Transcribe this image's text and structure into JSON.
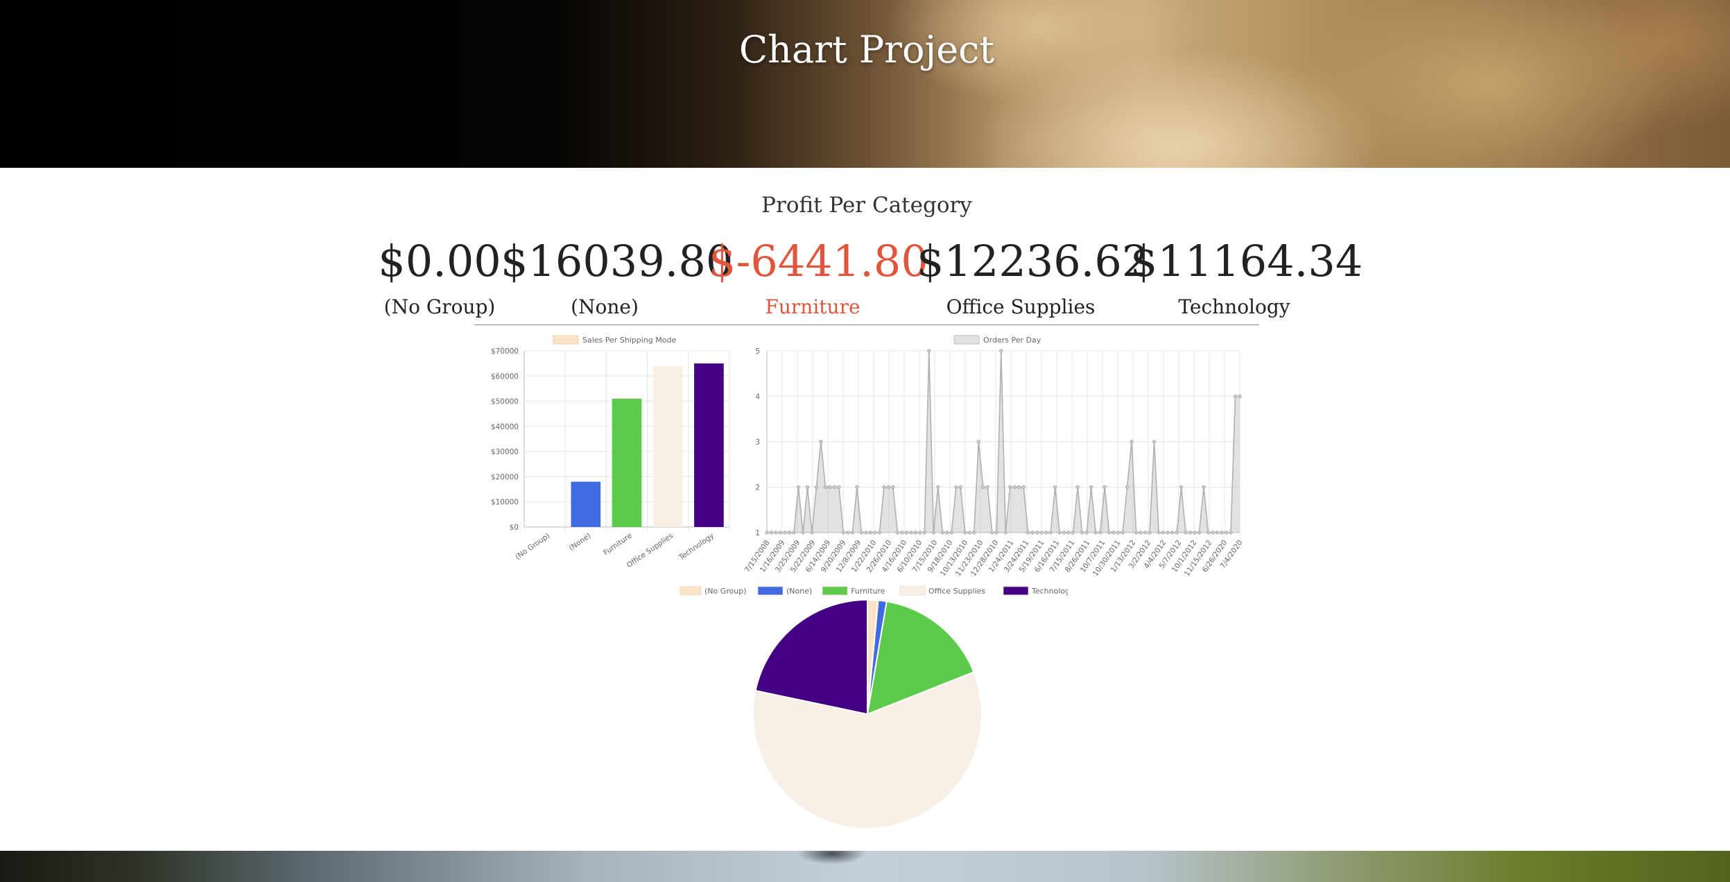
{
  "header": {
    "title": "Chart Project"
  },
  "section": {
    "title": "Profit Per Category"
  },
  "categories": [
    {
      "value": "$0.00",
      "label": "(No Group)",
      "negative": false
    },
    {
      "value": "$16039.80",
      "label": "(None)",
      "negative": false
    },
    {
      "value": "$-6441.80",
      "label": "Furniture",
      "negative": true
    },
    {
      "value": "$12236.62",
      "label": "Office Supplies",
      "negative": false
    },
    {
      "value": "$11164.34",
      "label": "Technology",
      "negative": false
    }
  ],
  "colors": {
    "accent_negative": "#e0553b",
    "no_group": "#fbe3c6",
    "none": "#4169e1",
    "furniture": "#5cca4a",
    "office_supplies": "#f8efe6",
    "technology": "#440083",
    "line": "#b0b0b0"
  },
  "chart_data": [
    {
      "type": "bar",
      "legend": "Sales Per Shipping Mode",
      "categories": [
        "(No Group)",
        "(None)",
        "Furniture",
        "Office Supplies",
        "Technology"
      ],
      "values": [
        0,
        18000,
        51000,
        64000,
        65000
      ],
      "colors": [
        "#fbe3c6",
        "#4169e1",
        "#5cca4a",
        "#f8efe6",
        "#440083"
      ],
      "yticks": [
        "$0",
        "$10000",
        "$20000",
        "$30000",
        "$40000",
        "$50000",
        "$60000",
        "$70000"
      ],
      "ylim": [
        0,
        70000
      ]
    },
    {
      "type": "line",
      "legend": "Orders Per Day",
      "xticks": [
        "7/15/2008",
        "1/16/2009",
        "3/25/2009",
        "5/22/2009",
        "6/14/2009",
        "9/20/2009",
        "12/8/2009",
        "1/22/2010",
        "2/26/2010",
        "4/16/2010",
        "6/10/2010",
        "7/15/2010",
        "9/18/2010",
        "10/13/2010",
        "11/23/2010",
        "12/28/2010",
        "1/24/2011",
        "3/24/2011",
        "5/19/2011",
        "6/16/2011",
        "7/15/2011",
        "8/26/2011",
        "10/7/2011",
        "10/30/2011",
        "1/13/2012",
        "3/2/2012",
        "4/4/2012",
        "5/7/2012",
        "10/1/2012",
        "11/15/2012",
        "6/26/2020",
        "7/4/2020"
      ],
      "yticks": [
        "1",
        "2",
        "3",
        "4",
        "5"
      ],
      "ylim": [
        1,
        5
      ],
      "values": [
        1,
        1,
        1,
        1,
        1,
        1,
        1,
        2,
        1,
        2,
        1,
        2,
        3,
        2,
        2,
        2,
        2,
        1,
        1,
        1,
        2,
        1,
        1,
        1,
        1,
        1,
        2,
        2,
        2,
        1,
        1,
        1,
        1,
        1,
        1,
        1,
        5,
        1,
        2,
        1,
        1,
        1,
        2,
        2,
        1,
        1,
        1,
        3,
        2,
        2,
        1,
        1,
        5,
        1,
        2,
        2,
        2,
        2,
        1,
        1,
        1,
        1,
        1,
        1,
        2,
        1,
        1,
        1,
        1,
        2,
        1,
        1,
        2,
        1,
        1,
        2,
        1,
        1,
        1,
        1,
        2,
        3,
        1,
        1,
        1,
        1,
        3,
        1,
        1,
        1,
        1,
        1,
        2,
        1,
        1,
        1,
        1,
        2,
        1,
        1,
        1,
        1,
        1,
        1,
        4,
        4
      ]
    },
    {
      "type": "pie",
      "legend": [
        "(No Group)",
        "(None)",
        "Furniture",
        "Office Supplies",
        "Technology"
      ],
      "values": [
        1.5,
        1.2,
        16.3,
        59.3,
        21.7
      ],
      "colors": [
        "#fbe3c6",
        "#4169e1",
        "#5cca4a",
        "#f8efe6",
        "#440083"
      ]
    }
  ]
}
